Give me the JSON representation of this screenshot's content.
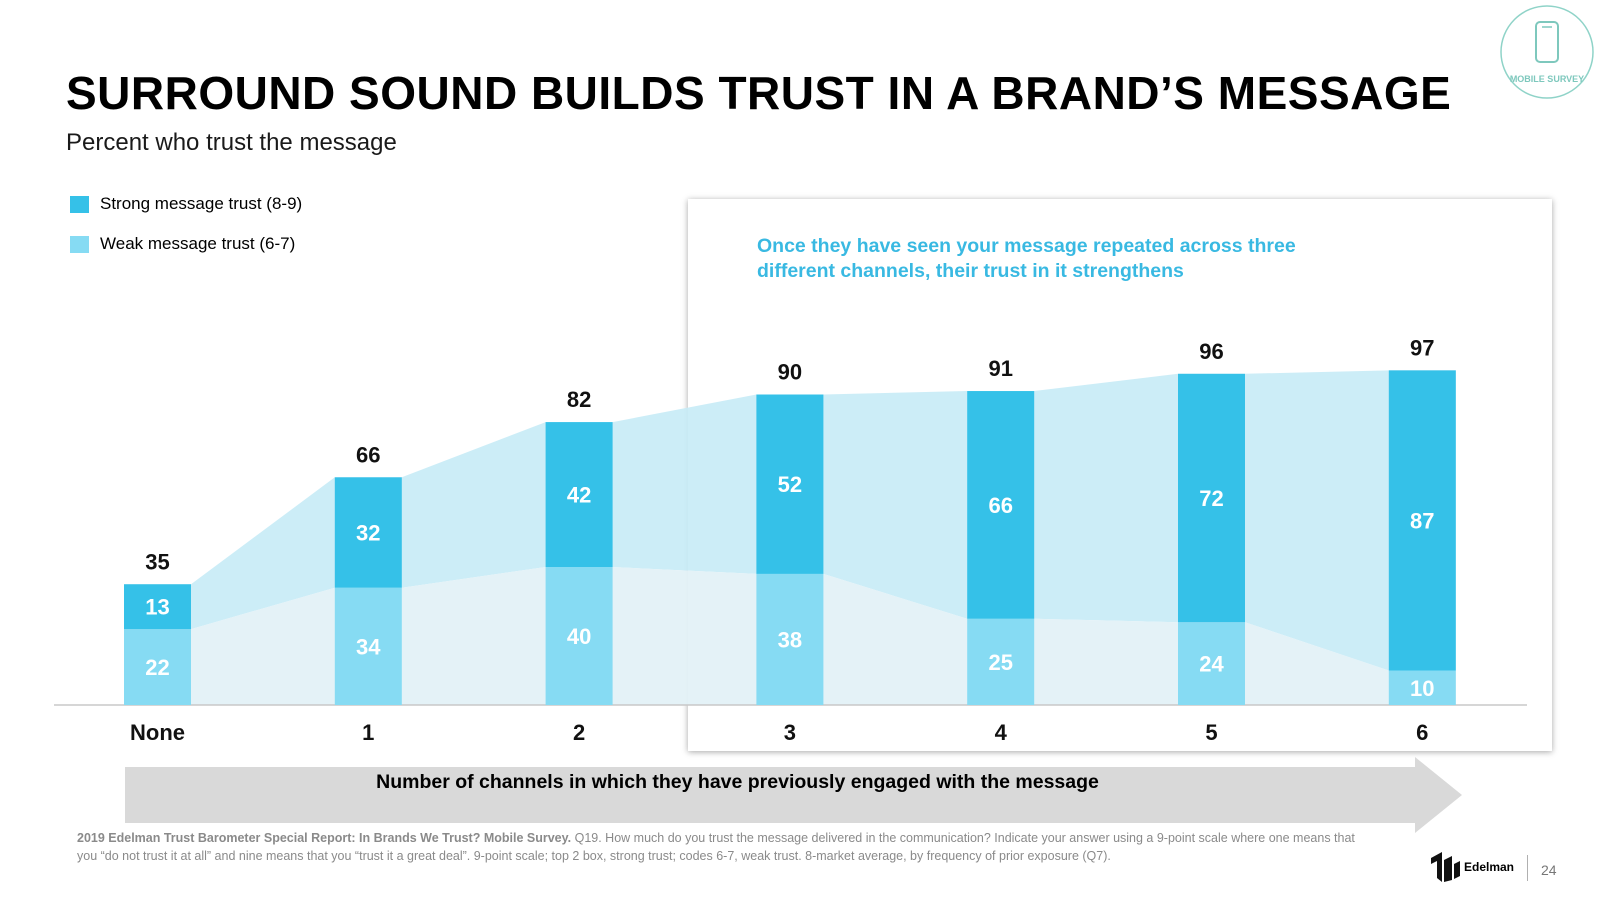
{
  "slide": {
    "title": "SURROUND SOUND BUILDS TRUST IN A BRAND’S MESSAGE",
    "subtitle": "Percent who trust the message",
    "callout": "Once they have seen your message repeated across three different channels, their trust in it strengthens",
    "axis_arrow_label": "Number of channels in which they have previously engaged with the message",
    "footnote_bold": "2019 Edelman Trust Barometer Special Report: In Brands We Trust? Mobile Survey.",
    "footnote_text": "Q19. How much do you trust the message delivered in the communication? Indicate your answer using a 9-point scale where one means that you “do not trust it at all” and nine means that you “trust it a great deal”. 9-point scale; top 2 box, strong trust; codes 6-7, weak trust. 8-market average, by frequency of prior exposure (Q7).",
    "badge_text": "MOBILE SURVEY",
    "logo_text": "Edelman",
    "page_number": "24"
  },
  "colors": {
    "strong": "#35c1e8",
    "weak": "#86dbf3",
    "band_strong": "#c7ebf6",
    "band_weak": "#e3f1f7",
    "callout": "#39b9e2",
    "arrow": "#d9d9d9"
  },
  "chart_data": {
    "type": "bar",
    "stacked": true,
    "title": "Percent who trust the message",
    "xlabel": "Number of channels in which they have previously engaged with the message",
    "ylabel": "",
    "ylim": [
      0,
      100
    ],
    "categories": [
      "None",
      "1",
      "2",
      "3",
      "4",
      "5",
      "6"
    ],
    "series": [
      {
        "name": "Weak message trust (6-7)",
        "color": "#86dbf3",
        "values": [
          22,
          34,
          40,
          38,
          25,
          24,
          10
        ]
      },
      {
        "name": "Strong message trust (8-9)",
        "color": "#35c1e8",
        "values": [
          13,
          32,
          42,
          52,
          66,
          72,
          87
        ]
      }
    ],
    "totals": [
      35,
      66,
      82,
      90,
      91,
      96,
      97
    ],
    "legend": [
      {
        "label": "Strong message trust (8-9)",
        "color": "#35c1e8"
      },
      {
        "label": "Weak message trust (6-7)",
        "color": "#86dbf3"
      }
    ]
  }
}
